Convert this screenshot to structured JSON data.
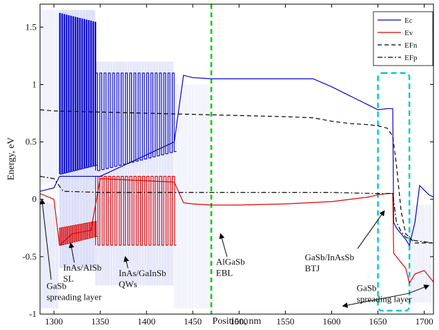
{
  "chart_data": {
    "type": "line",
    "title": "",
    "xlabel": "Position, nm",
    "ylabel": "Energy, eV",
    "xlim": [
      1285,
      1710
    ],
    "ylim": [
      -1.0,
      1.7
    ],
    "xticks": [
      1300,
      1350,
      1400,
      1450,
      1500,
      1550,
      1600,
      1650,
      1700
    ],
    "yticks": [
      -1,
      -0.5,
      0,
      0.5,
      1,
      1.5
    ],
    "xtick_labels": [
      "1300",
      "1350",
      "1400",
      "1450",
      "1500",
      "1550",
      "1600",
      "1650",
      "1700"
    ],
    "ytick_labels": [
      "-1",
      "-0.5",
      "0",
      "0.5",
      "1",
      "1.5"
    ],
    "grid": false,
    "legend_position": "top-right",
    "series": [
      {
        "name": "Ec",
        "color": "#0000cc",
        "style": "solid",
        "x": [
          1285,
          1300,
          1306,
          1350,
          1430,
          1440,
          1450,
          1470,
          1500,
          1550,
          1580,
          1600,
          1620,
          1640,
          1650,
          1660,
          1666,
          1667,
          1670,
          1680,
          1684,
          1690,
          1695,
          1700,
          1705,
          1710
        ],
        "y": [
          0.07,
          0.1,
          0.2,
          0.2,
          0.5,
          1.08,
          1.06,
          1.05,
          1.05,
          1.05,
          1.05,
          0.98,
          0.9,
          0.82,
          0.78,
          0.79,
          0.79,
          -0.2,
          -0.25,
          -0.35,
          -0.4,
          -0.2,
          0.12,
          0.08,
          0.04,
          0.02
        ]
      },
      {
        "name": "Ev",
        "color": "#dd0000",
        "style": "solid",
        "x": [
          1285,
          1300,
          1306,
          1320,
          1340,
          1350,
          1430,
          1440,
          1450,
          1470,
          1500,
          1550,
          1600,
          1640,
          1650,
          1660,
          1666,
          1667,
          1670,
          1680,
          1684,
          1690,
          1700,
          1710
        ],
        "y": [
          0.05,
          0.0,
          -0.4,
          -0.3,
          -0.27,
          0.18,
          0.15,
          -0.03,
          -0.04,
          -0.05,
          -0.05,
          -0.04,
          -0.02,
          0.02,
          0.04,
          0.05,
          0.05,
          -0.47,
          -0.5,
          -0.6,
          -0.73,
          -0.65,
          -0.62,
          -0.72
        ]
      },
      {
        "name": "EFn",
        "color": "#000000",
        "style": "dashed",
        "x": [
          1285,
          1300,
          1350,
          1400,
          1450,
          1500,
          1550,
          1580,
          1600,
          1620,
          1640,
          1650,
          1660,
          1666,
          1670,
          1675,
          1680,
          1690,
          1700,
          1710
        ],
        "y": [
          0.78,
          0.77,
          0.76,
          0.75,
          0.74,
          0.73,
          0.72,
          0.71,
          0.68,
          0.66,
          0.65,
          0.64,
          0.62,
          0.55,
          0.3,
          -0.1,
          -0.3,
          -0.38,
          -0.38,
          -0.38
        ]
      },
      {
        "name": "EFp",
        "color": "#000000",
        "style": "dashdot",
        "x": [
          1285,
          1300,
          1310,
          1350,
          1400,
          1450,
          1500,
          1550,
          1600,
          1650,
          1666,
          1670,
          1675,
          1680,
          1690,
          1700,
          1710
        ],
        "y": [
          0.2,
          0.18,
          0.07,
          0.06,
          0.06,
          0.06,
          0.06,
          0.06,
          0.06,
          0.05,
          0.05,
          -0.2,
          -0.28,
          -0.33,
          -0.36,
          -0.37,
          -0.38
        ]
      }
    ],
    "shading": {
      "color": "#2233cc",
      "spreading_left_x": [
        1285,
        1306
      ],
      "sl_x": [
        1306,
        1345
      ],
      "qw_x": [
        1345,
        1430
      ],
      "contact_x": [
        1430,
        1470
      ],
      "right_x": [
        1684,
        1710
      ]
    },
    "markers": {
      "ebl_divider_x": 1470,
      "ebl_divider_color": "#00cc00",
      "btj_box": {
        "x": [
          1650,
          1684
        ],
        "y": [
          -0.97,
          1.1
        ],
        "color": "#00cccc"
      }
    },
    "annotations": [
      {
        "label": [
          "GaSb",
          "spreading layer"
        ],
        "text_x": 1292,
        "text_y": -0.78,
        "arrow_from": [
          1297,
          -0.7
        ],
        "arrow_to": [
          1287,
          0.0
        ]
      },
      {
        "label": [
          "InAs/AlSb",
          "SL"
        ],
        "text_x": 1310,
        "text_y": -0.62,
        "arrow_from": [
          1322,
          -0.55
        ],
        "arrow_to": [
          1318,
          -0.38
        ]
      },
      {
        "label": [
          "InAs/GaInSb",
          "QWs"
        ],
        "text_x": 1370,
        "text_y": -0.67,
        "arrow_from": [
          1380,
          -0.6
        ],
        "arrow_to": [
          1377,
          -0.5
        ]
      },
      {
        "label": [
          "AlGaSb",
          "EBL"
        ],
        "text_x": 1475,
        "text_y": -0.57,
        "arrow_from": [
          1487,
          -0.5
        ],
        "arrow_to": [
          1480,
          -0.3
        ]
      },
      {
        "label": [
          "GaSb/InAsSb",
          "BTJ"
        ],
        "text_x": 1571,
        "text_y": -0.53,
        "arrow_from": [
          1628,
          -0.43
        ],
        "arrow_to": [
          1657,
          -0.1
        ]
      },
      {
        "label": [
          "GaSb",
          "spreading layer"
        ],
        "text_x": 1627,
        "text_y": -0.8,
        "arrow_from": [
          1683,
          -0.82
        ],
        "arrow_to": [
          1705,
          -0.75
        ]
      },
      {
        "arrow_from": [
          1683,
          -0.82
        ],
        "arrow_to": [
          1612,
          -0.93
        ]
      }
    ]
  }
}
